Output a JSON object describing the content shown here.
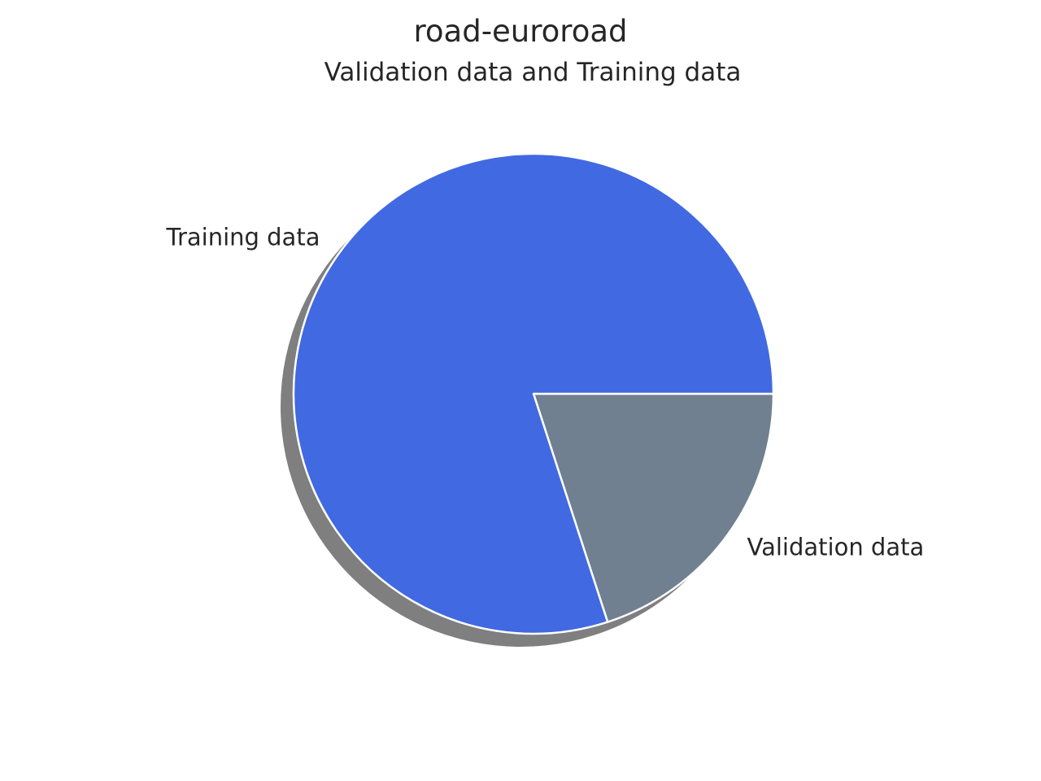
{
  "chart_data": {
    "type": "pie",
    "title": "road-euroroad",
    "subtitle": "Validation data and Training data",
    "slices": [
      {
        "label": "Validation data",
        "value": 20,
        "color": "#708090"
      },
      {
        "label": "Training data",
        "value": 80,
        "color": "#4169E1"
      }
    ],
    "shadow": true,
    "wedge_edge_color": "#ffffff",
    "start_angle_deg": 0,
    "counterclockwise": false
  }
}
